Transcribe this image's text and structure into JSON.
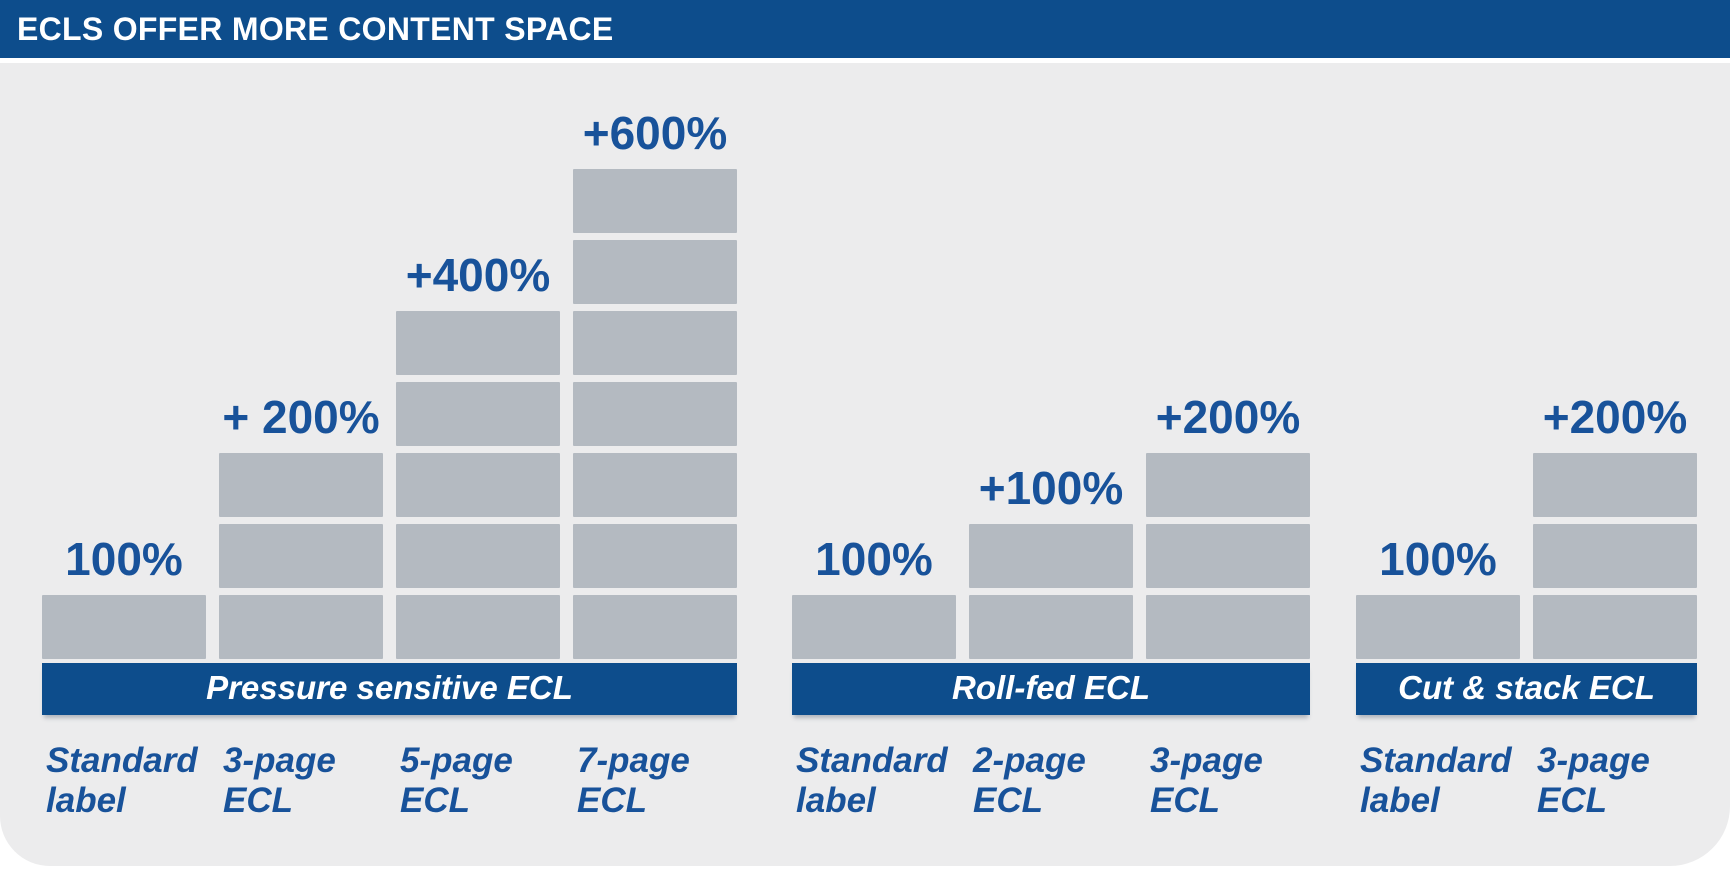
{
  "header": {
    "title": "ECLS OFFER MORE CONTENT SPACE"
  },
  "colors": {
    "brand_blue": "#0d4d8c",
    "text_blue": "#18529a",
    "block_gray": "#b4bac1",
    "panel_bg": "#ececed",
    "page_bg": "#ffffff"
  },
  "chart_data": {
    "type": "bar",
    "title": "ECLS OFFER MORE CONTENT SPACE",
    "unit_block_percent": 100,
    "legend_position": "none",
    "grid": false,
    "groups": [
      {
        "name": "Pressure sensitive ECL",
        "bars": [
          {
            "label": "Standard label",
            "value_label": "100%",
            "blocks": 1,
            "percent": 100
          },
          {
            "label": "3-page ECL",
            "value_label": "+ 200%",
            "blocks": 3,
            "percent": 300
          },
          {
            "label": "5-page ECL",
            "value_label": "+400%",
            "blocks": 5,
            "percent": 500
          },
          {
            "label": "7-page ECL",
            "value_label": "+600%",
            "blocks": 7,
            "percent": 700
          }
        ]
      },
      {
        "name": "Roll-fed ECL",
        "bars": [
          {
            "label": "Standard label",
            "value_label": "100%",
            "blocks": 1,
            "percent": 100
          },
          {
            "label": "2-page ECL",
            "value_label": "+100%",
            "blocks": 2,
            "percent": 200
          },
          {
            "label": "3-page ECL",
            "value_label": "+200%",
            "blocks": 3,
            "percent": 300
          }
        ]
      },
      {
        "name": "Cut & stack ECL",
        "bars": [
          {
            "label": "Standard label",
            "value_label": "100%",
            "blocks": 1,
            "percent": 100
          },
          {
            "label": "3-page ECL",
            "value_label": "+200%",
            "blocks": 3,
            "percent": 300
          }
        ]
      }
    ]
  }
}
